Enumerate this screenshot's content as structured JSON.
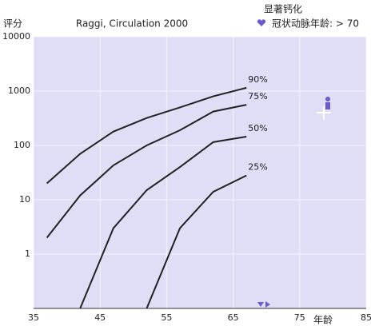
{
  "chart_data": {
    "type": "line",
    "title": "Raggi, Circulation 2000",
    "y_label": "评分",
    "x_label": "年龄",
    "legend_title": "显著钙化",
    "legend_item": "冠状动脉年龄: > 70",
    "log_y": true,
    "grid": true,
    "color": "#222222",
    "xlim": [
      35,
      85
    ],
    "xticks": [
      35,
      45,
      55,
      65,
      75,
      85
    ],
    "ylim": [
      0.1,
      10000
    ],
    "yticks": [
      1,
      10,
      100,
      1000,
      10000
    ],
    "series": [
      {
        "name": "90%",
        "x": [
          37,
          42,
          47,
          52,
          57,
          62,
          67
        ],
        "values": [
          20,
          70,
          180,
          320,
          500,
          800,
          1150
        ]
      },
      {
        "name": "75%",
        "x": [
          37,
          42,
          47,
          52,
          57,
          62,
          67
        ],
        "values": [
          2,
          12,
          43,
          100,
          190,
          420,
          560
        ]
      },
      {
        "name": "50%",
        "x": [
          42,
          47,
          52,
          57,
          62,
          67
        ],
        "values": [
          0.1,
          3,
          15,
          40,
          115,
          145
        ]
      },
      {
        "name": "25%",
        "x": [
          52,
          57,
          62,
          67
        ],
        "values": [
          0.1,
          3,
          14,
          28
        ]
      }
    ]
  }
}
